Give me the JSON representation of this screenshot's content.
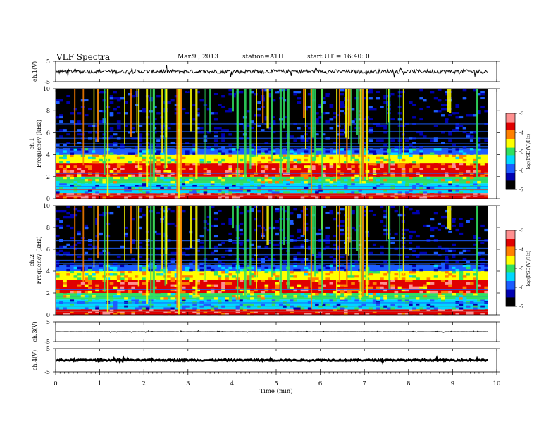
{
  "header": {
    "title": "VLF  Spectra",
    "date": "Mar.9  , 2013",
    "station": "station=ATH",
    "start": "start  UT  =   16:40: 0"
  },
  "chart_data": [
    {
      "type": "line",
      "panel": "ch1-waveform",
      "ylabel": "ch.1(V)",
      "ylim": [
        -5,
        5
      ],
      "yticks": [
        "5",
        "-5"
      ],
      "baseline": 0,
      "noise": 0.9,
      "spikes": 1.3
    },
    {
      "type": "heatmap",
      "panel": "ch1-spectrogram",
      "ylabel": "Frequency  (kHz)",
      "channel_label": "ch.1",
      "ylim": [
        0,
        10
      ],
      "yticks": [
        "0",
        "2",
        "4",
        "6",
        "8",
        "10"
      ],
      "colorbar": {
        "label": "log(PSD(V²/Hz)",
        "ticks": [
          "-3",
          "-4",
          "-5",
          "-6",
          "-7"
        ],
        "range": [
          -7,
          -3
        ]
      },
      "bands_khz": [
        {
          "from": 0,
          "to": 0.5,
          "level": -3.5
        },
        {
          "from": 0.5,
          "to": 1.4,
          "level": -5.6
        },
        {
          "from": 1.4,
          "to": 2.0,
          "level": -4.8
        },
        {
          "from": 2.0,
          "to": 3.2,
          "level": -3.8
        },
        {
          "from": 3.2,
          "to": 4.0,
          "level": -4.6
        },
        {
          "from": 4.0,
          "to": 4.6,
          "level": -5.8
        },
        {
          "from": 4.6,
          "to": 10.0,
          "level": -6.7
        }
      ]
    },
    {
      "type": "heatmap",
      "panel": "ch2-spectrogram",
      "ylabel": "Frequency  (kHz)",
      "channel_label": "ch.2",
      "ylim": [
        0,
        10
      ],
      "yticks": [
        "0",
        "2",
        "4",
        "6",
        "8",
        "10"
      ],
      "colorbar": {
        "label": "log(PSD(V²/Hz)",
        "ticks": [
          "-3",
          "-4",
          "-5",
          "-6",
          "-7"
        ],
        "range": [
          -7,
          -3
        ]
      },
      "bands_khz": [
        {
          "from": 0,
          "to": 0.5,
          "level": -3.5
        },
        {
          "from": 0.5,
          "to": 1.4,
          "level": -5.6
        },
        {
          "from": 1.4,
          "to": 2.0,
          "level": -4.8
        },
        {
          "from": 2.0,
          "to": 3.2,
          "level": -3.8
        },
        {
          "from": 3.2,
          "to": 4.0,
          "level": -4.6
        },
        {
          "from": 4.0,
          "to": 4.6,
          "level": -5.8
        },
        {
          "from": 4.6,
          "to": 10.0,
          "level": -6.7
        }
      ]
    },
    {
      "type": "line",
      "panel": "ch3-waveform",
      "ylabel": "ch.3(V)",
      "ylim": [
        -5,
        5
      ],
      "yticks": [
        "5",
        "-5"
      ],
      "baseline": 0,
      "noise": 0.05,
      "spikes": 0.25
    },
    {
      "type": "line",
      "panel": "ch4-waveform",
      "ylabel": "ch.4(V)",
      "ylim": [
        -5,
        5
      ],
      "yticks": [
        "5",
        "-5"
      ],
      "baseline": 0,
      "noise": 0.3,
      "spikes": 0.4
    }
  ],
  "xaxis": {
    "label": "Time  (min)",
    "ticks": [
      "0",
      "1",
      "2",
      "3",
      "4",
      "5",
      "6",
      "7",
      "8",
      "9",
      "10"
    ],
    "range": [
      0,
      10
    ],
    "data_end": 9.8
  },
  "colors": {
    "colormap": [
      "#000000",
      "#0000b0",
      "#1c5cff",
      "#00d8ff",
      "#30e060",
      "#ffff00",
      "#ff8000",
      "#e00000",
      "#ff9090",
      "#ffffff"
    ]
  }
}
